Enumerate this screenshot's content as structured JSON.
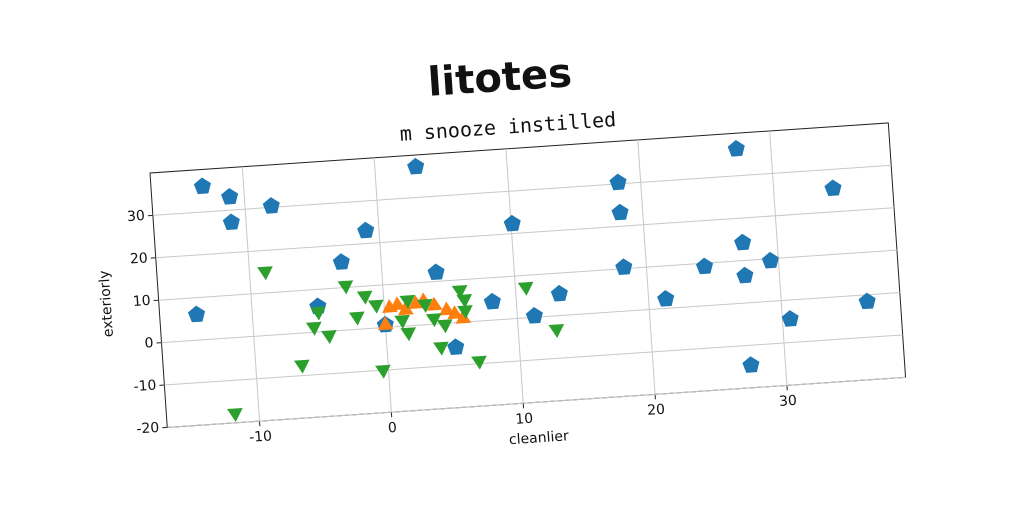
{
  "chart_data": {
    "type": "scatter",
    "title": "litotes",
    "subtitle": "m snooze instilled",
    "x_label": "cleanlier",
    "y_label": "exteriorly",
    "xlim": [
      -17,
      39
    ],
    "ylim": [
      -20,
      40
    ],
    "xticks": [
      -10,
      0,
      10,
      20,
      30
    ],
    "yticks": [
      -20,
      -10,
      0,
      10,
      20,
      30
    ],
    "grid": true,
    "series": [
      {
        "color": "#1f77b4",
        "marker": "pentagon",
        "x": [
          -13.1,
          -11.1,
          -11.1,
          -8.0,
          3.1,
          -1.0,
          -3.0,
          -14.2,
          -5.0,
          0,
          4.1,
          5.2,
          8.2,
          10.1,
          11.3,
          13.3,
          18.3,
          18.3,
          18.3,
          21.3,
          24.4,
          27.4,
          27.4,
          27.4,
          29.4,
          30.6,
          27.4,
          34.5,
          36.5
        ],
        "values": [
          36.0,
          33.1,
          27.1,
          30.3,
          37.2,
          23.0,
          16.0,
          6.0,
          6.0,
          0.6,
          12.1,
          -5.8,
          4.3,
          22.3,
          0.3,
          5.1,
          30.3,
          23.2,
          10.3,
          2.2,
          9.2,
          36.3,
          14.2,
          6.4,
          9.5,
          -4.5,
          -14.7,
          25.5,
          -1.6
        ]
      },
      {
        "color": "#ff7f0e",
        "marker": "triangle-up",
        "x": [
          0.4,
          1,
          1.6,
          2.4,
          3,
          3.8,
          4.7,
          5.3,
          5.9,
          0
        ],
        "values": [
          4.5,
          5,
          3.7,
          5,
          5.5,
          4.3,
          3,
          2,
          0.8,
          0.5
        ]
      },
      {
        "color": "#2ca02c",
        "marker": "triangle-down",
        "x": [
          -8.8,
          -11.8,
          -6.5,
          -5.4,
          -5.0,
          -4.3,
          -2.8,
          -2.1,
          -1.4,
          -0.6,
          -0.4,
          1.3,
          1.7,
          1.8,
          3.1,
          3.7,
          4.1,
          4.5,
          5.8,
          6.1,
          6.9,
          10.8,
          12.9,
          6.1
        ],
        "values": [
          15.1,
          -17.7,
          -7.4,
          1.3,
          4.8,
          -0.9,
          10.5,
          3.0,
          7.8,
          5.5,
          -9.9,
          1.5,
          -1.5,
          6.1,
          4.9,
          1.4,
          -5.4,
          -0.2,
          7.6,
          2.8,
          -9.3,
          7.3,
          -3.1,
          5.4
        ]
      }
    ]
  }
}
